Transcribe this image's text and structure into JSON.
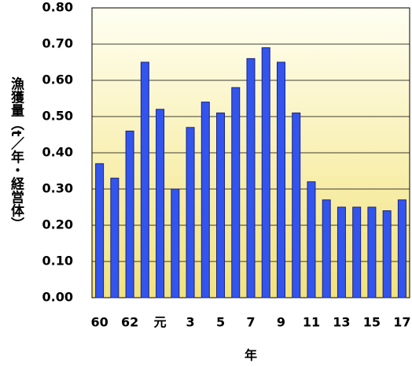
{
  "chart_data": {
    "type": "bar",
    "y_label": "漁獲量（t／年・経営体）",
    "x_label": "年",
    "categories": [
      "60",
      null,
      "62",
      null,
      "元",
      null,
      "3",
      null,
      "5",
      null,
      "7",
      null,
      "9",
      null,
      "11",
      null,
      "13",
      null,
      "15",
      null,
      "17"
    ],
    "values": [
      0.37,
      0.33,
      0.46,
      0.65,
      0.52,
      0.3,
      0.47,
      0.54,
      0.51,
      0.58,
      0.66,
      0.69,
      0.65,
      0.51,
      0.32,
      0.27,
      0.25,
      0.25,
      0.25,
      0.24,
      0.27
    ],
    "color": "#3355ee",
    "ylim": [
      0,
      0.8
    ],
    "yticks": [
      {
        "value": 0,
        "label": "0.00"
      },
      {
        "value": 0.1,
        "label": "0.10"
      },
      {
        "value": 0.2,
        "label": "0.20"
      },
      {
        "value": 0.3,
        "label": "0.30"
      },
      {
        "value": 0.4,
        "label": "0.40"
      },
      {
        "value": 0.5,
        "label": "0.50"
      },
      {
        "value": 0.6,
        "label": "0.60"
      },
      {
        "value": 0.7,
        "label": "0.70"
      },
      {
        "value": 0.8,
        "label": "0.80"
      }
    ],
    "grid": true
  }
}
